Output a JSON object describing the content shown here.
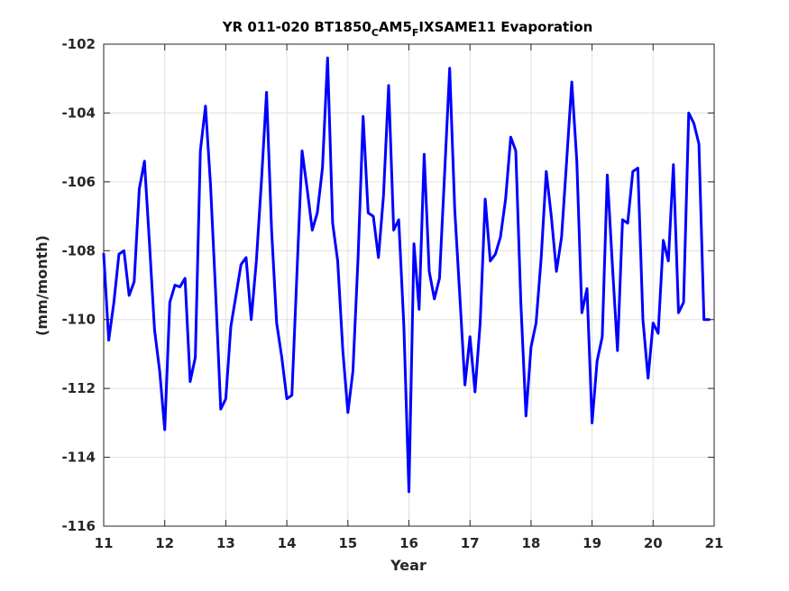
{
  "chart_data": {
    "type": "line",
    "title": {
      "prefix": "YR 011-020 BT1850",
      "sub1": "C",
      "mid": "AM5",
      "sub2": "F",
      "suffix": "IXSAME11 Evaporation"
    },
    "xlabel": "Year",
    "ylabel": "(mm/month)",
    "xlim": [
      11,
      21
    ],
    "ylim": [
      -116,
      -102
    ],
    "xticks": [
      11,
      12,
      13,
      14,
      15,
      16,
      17,
      18,
      19,
      20,
      21
    ],
    "xtick_labels": [
      "11",
      "12",
      "13",
      "14",
      "15",
      "16",
      "17",
      "18",
      "19",
      "20",
      "21"
    ],
    "yticks": [
      -116,
      -114,
      -112,
      -110,
      -108,
      -106,
      -104,
      -102
    ],
    "ytick_labels": [
      "-116",
      "-114",
      "-112",
      "-110",
      "-108",
      "-106",
      "-104",
      "-102"
    ],
    "grid": true,
    "line_color": "#0000ff",
    "series": [
      {
        "x": [
          11.0,
          11.083,
          11.167,
          11.25,
          11.333,
          11.417,
          11.5,
          11.583,
          11.667,
          11.75,
          11.833,
          11.917,
          12.0,
          12.083,
          12.167,
          12.25,
          12.333,
          12.417,
          12.5,
          12.583,
          12.667,
          12.75,
          12.833,
          12.917,
          13.0,
          13.083,
          13.167,
          13.25,
          13.333,
          13.417,
          13.5,
          13.583,
          13.667,
          13.75,
          13.833,
          13.917,
          14.0,
          14.083,
          14.167,
          14.25,
          14.333,
          14.417,
          14.5,
          14.583,
          14.667,
          14.75,
          14.833,
          14.917,
          15.0,
          15.083,
          15.167,
          15.25,
          15.333,
          15.417,
          15.5,
          15.583,
          15.667,
          15.75,
          15.833,
          15.917,
          16.0,
          16.083,
          16.167,
          16.25,
          16.333,
          16.417,
          16.5,
          16.583,
          16.667,
          16.75,
          16.833,
          16.917,
          17.0,
          17.083,
          17.167,
          17.25,
          17.333,
          17.417,
          17.5,
          17.583,
          17.667,
          17.75,
          17.833,
          17.917,
          18.0,
          18.083,
          18.167,
          18.25,
          18.333,
          18.417,
          18.5,
          18.583,
          18.667,
          18.75,
          18.833,
          18.917,
          19.0,
          19.083,
          19.167,
          19.25,
          19.333,
          19.417,
          19.5,
          19.583,
          19.667,
          19.75,
          19.833,
          19.917,
          20.0,
          20.083,
          20.167,
          20.25,
          20.333,
          20.417,
          20.5,
          20.583,
          20.667,
          20.75,
          20.833,
          20.917
        ],
        "y": [
          -108.1,
          -110.6,
          -109.5,
          -108.1,
          -108.0,
          -109.3,
          -108.9,
          -106.2,
          -105.4,
          -107.8,
          -110.3,
          -111.5,
          -113.2,
          -109.5,
          -109.0,
          -109.05,
          -108.8,
          -111.8,
          -111.1,
          -105.1,
          -103.8,
          -106.1,
          -109.2,
          -112.6,
          -112.3,
          -110.2,
          -109.3,
          -108.4,
          -108.2,
          -110.0,
          -108.3,
          -106.0,
          -103.4,
          -107.4,
          -110.1,
          -111.1,
          -112.3,
          -112.2,
          -108.6,
          -105.1,
          -106.2,
          -107.4,
          -106.9,
          -105.6,
          -102.4,
          -107.2,
          -108.3,
          -110.9,
          -112.7,
          -111.5,
          -108.2,
          -104.1,
          -106.9,
          -107.0,
          -108.2,
          -106.4,
          -103.2,
          -107.4,
          -107.1,
          -110.2,
          -115.0,
          -107.8,
          -109.7,
          -105.2,
          -108.6,
          -109.4,
          -108.8,
          -105.8,
          -102.7,
          -106.8,
          -109.3,
          -111.9,
          -110.5,
          -112.1,
          -110.1,
          -106.5,
          -108.3,
          -108.1,
          -107.6,
          -106.5,
          -104.7,
          -105.1,
          -109.5,
          -112.8,
          -110.8,
          -110.1,
          -108.2,
          -105.7,
          -107.0,
          -108.6,
          -107.6,
          -105.4,
          -103.1,
          -105.4,
          -109.8,
          -109.1,
          -113.0,
          -111.2,
          -110.5,
          -105.8,
          -108.4,
          -110.9,
          -107.1,
          -107.2,
          -105.7,
          -105.6,
          -110.0,
          -111.7,
          -110.1,
          -110.4,
          -107.7,
          -108.3,
          -105.5,
          -109.8,
          -109.5,
          -104.0,
          -104.3,
          -104.9,
          -110.0,
          -110.0
        ]
      }
    ]
  }
}
